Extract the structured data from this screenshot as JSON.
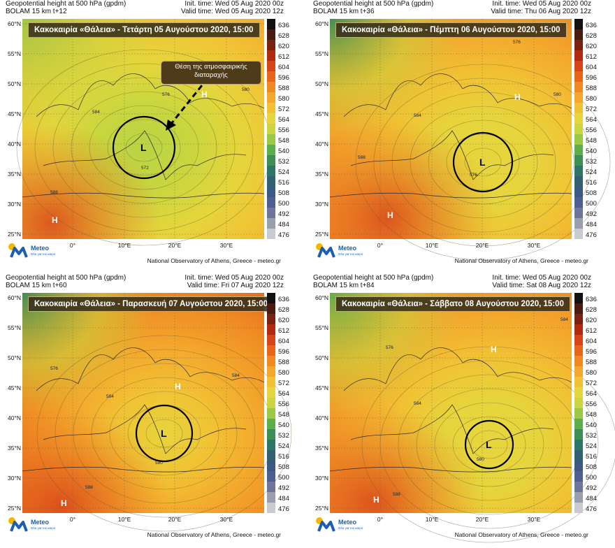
{
  "panels": [
    {
      "header_left_1": "Geopotential height at 500 hPa (gpdm)",
      "header_left_2": "BOLAM 15 km t+12",
      "header_right_1": "Init. time: Wed 05 Aug 2020 00z",
      "header_right_2": "Valid time: Wed 05 Aug 2020 12z",
      "banner": "Κακοκαιρία «Θάλεια» - Τετάρτη 05 Αυγούστου 2020, 15:00",
      "low_label": "L",
      "high_labels": [
        "H",
        "H"
      ],
      "contour_labels": [
        "584",
        "572",
        "580",
        "576",
        "588"
      ],
      "annotation": "Θέση της ατμοσφαιρικής διαταραχής"
    },
    {
      "header_left_1": "Geopotential height at 500 hPa (gpdm)",
      "header_left_2": "BOLAM 15 km t+36",
      "header_right_1": "Init. time: Wed 05 Aug 2020 00z",
      "header_right_2": "Valid time: Thu 06 Aug 2020 12z",
      "banner": "Κακοκαιρία «Θάλεια» - Πέμπτη 06 Αυγούστου 2020, 15:00",
      "low_label": "L",
      "high_labels": [
        "H",
        "H"
      ],
      "contour_labels": [
        "584",
        "576",
        "580",
        "576",
        "588"
      ]
    },
    {
      "header_left_1": "Geopotential height at 500 hPa (gpdm)",
      "header_left_2": "BOLAM 15 km t+60",
      "header_right_1": "Init. time: Wed 05 Aug 2020 00z",
      "header_right_2": "Valid time: Fri 07 Aug 2020 12z",
      "banner": "Κακοκαιρία «Θάλεια» - Παρασκευή 07 Αυγούστου 2020, 15:00",
      "low_label": "L",
      "high_labels": [
        "H",
        "H"
      ],
      "contour_labels": [
        "584",
        "580",
        "584",
        "576",
        "588"
      ]
    },
    {
      "header_left_1": "Geopotential height at 500 hPa (gpdm)",
      "header_left_2": "BOLAM 15 km t+84",
      "header_right_1": "Init. time: Wed 05 Aug 2020 00z",
      "header_right_2": "Valid time: Sat 08 Aug 2020 12z",
      "banner": "Κακοκαιρία «Θάλεια» - Σάββατο 08 Αυγούστου 2020, 15:00",
      "low_label": "L",
      "high_labels": [
        "H",
        "H"
      ],
      "contour_labels": [
        "584",
        "580",
        "584",
        "576",
        "588"
      ]
    }
  ],
  "lat_labels": [
    "60°N",
    "55°N",
    "50°N",
    "45°N",
    "40°N",
    "35°N",
    "30°N",
    "25°N"
  ],
  "lon_labels": [
    "0°",
    "10°E",
    "20°E",
    "30°E"
  ],
  "colorbar_labels": [
    "636",
    "628",
    "620",
    "612",
    "604",
    "596",
    "588",
    "580",
    "572",
    "564",
    "556",
    "548",
    "540",
    "532",
    "524",
    "516",
    "508",
    "500",
    "492",
    "484",
    "476"
  ],
  "colorbar_colors": [
    "#111111",
    "#4a1c10",
    "#7a2210",
    "#b02a10",
    "#d8441a",
    "#e8651c",
    "#ef8a23",
    "#f3a72c",
    "#f1c234",
    "#e6d53c",
    "#c9d63f",
    "#9bc846",
    "#5fae4c",
    "#3b8f55",
    "#2d7564",
    "#2f6173",
    "#3a5a83",
    "#4f5e91",
    "#6e7599",
    "#9a9fae",
    "#c9cbd2"
  ],
  "logo_name": "Meteo",
  "logo_tagline": "Όλα για τον καιρό",
  "credit": "National Observatory of Athens, Greece - meteo.gr"
}
